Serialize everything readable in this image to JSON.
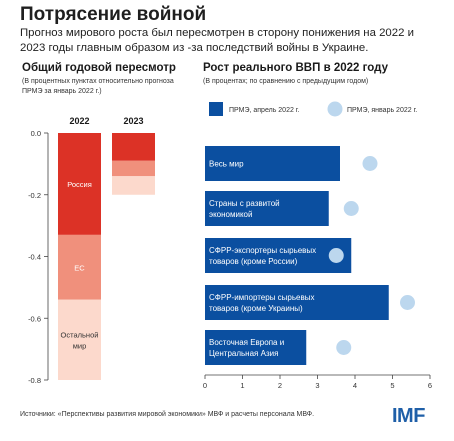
{
  "header": {
    "title": "Потрясение войной",
    "subtitle": "Прогноз мирового роста был пересмотрен в сторону понижения на 2022 и 2023  годы главным образом из -за последствий войны в Украине."
  },
  "left_panel": {
    "title": "Общий годовой пересмотр",
    "note": "(В процентных пунктах относительно прогноза ПРМЭ за январь 2022 г.)"
  },
  "right_panel": {
    "title": "Рост реального ВВП в 2022 году",
    "note": "(В процентах; по сравнению с предыдущим годом)"
  },
  "footer": {
    "source": "Источники: «Перспективы развития мировой экономики» МВФ и расчеты персонала МВФ.",
    "logo": "IMF"
  },
  "colors": {
    "russia": "#dc3226",
    "eu": "#f0907c",
    "rest": "#fcd9cc",
    "bar_blue": "#0b4fa0",
    "dot_blue": "#bcd7ee"
  },
  "chart_data": [
    {
      "type": "bar",
      "stacked": true,
      "title": "Общий годовой пересмотр",
      "categories": [
        "2022",
        "2023"
      ],
      "series": [
        {
          "name": "Россия",
          "values": [
            -0.33,
            -0.09
          ]
        },
        {
          "name": "ЕС",
          "values": [
            -0.21,
            -0.05
          ]
        },
        {
          "name": "Остальной мир",
          "values": [
            -0.26,
            -0.06
          ]
        }
      ],
      "ylim": [
        -0.8,
        0.0
      ],
      "yticks": [
        "0.0",
        "-0.2",
        "-0.4",
        "-0.6",
        "-0.8"
      ],
      "yvalues": [
        0,
        -0.2,
        -0.4,
        -0.6,
        -0.8
      ],
      "grid": false
    },
    {
      "type": "bar",
      "orientation": "horizontal",
      "title": "Рост реального ВВП в 2022 году",
      "categories": [
        "Весь мир",
        "Страны с развитой экономикой",
        "СФРР-экспортеры сырьевых товаров (кроме России)",
        "СФРР-импортеры сырьевых товаров (кроме Украины)",
        "Восточная Европа и Центральная Азия"
      ],
      "category_lines": [
        [
          "Весь мир"
        ],
        [
          "Страны с развитой",
          "экономикой"
        ],
        [
          "СФРР-экспортеры сырьевых",
          "товаров (кроме России)"
        ],
        [
          "СФРР-импортеры сырьевых",
          "товаров (кроме Украины)"
        ],
        [
          "Восточная Европа и",
          "Центральная Азия"
        ]
      ],
      "series": [
        {
          "name": "ПРМЭ, апрель 2022 г.",
          "values": [
            3.6,
            3.3,
            3.9,
            4.9,
            2.7
          ],
          "style": "bar"
        },
        {
          "name": "ПРМЭ, январь 2022 г.",
          "values": [
            4.4,
            3.9,
            3.5,
            5.4,
            3.7
          ],
          "style": "dot"
        }
      ],
      "xlim": [
        0,
        6
      ],
      "xticks": [
        "0",
        "1",
        "2",
        "3",
        "4",
        "5",
        "6"
      ],
      "legend": "top",
      "grid": false
    }
  ]
}
